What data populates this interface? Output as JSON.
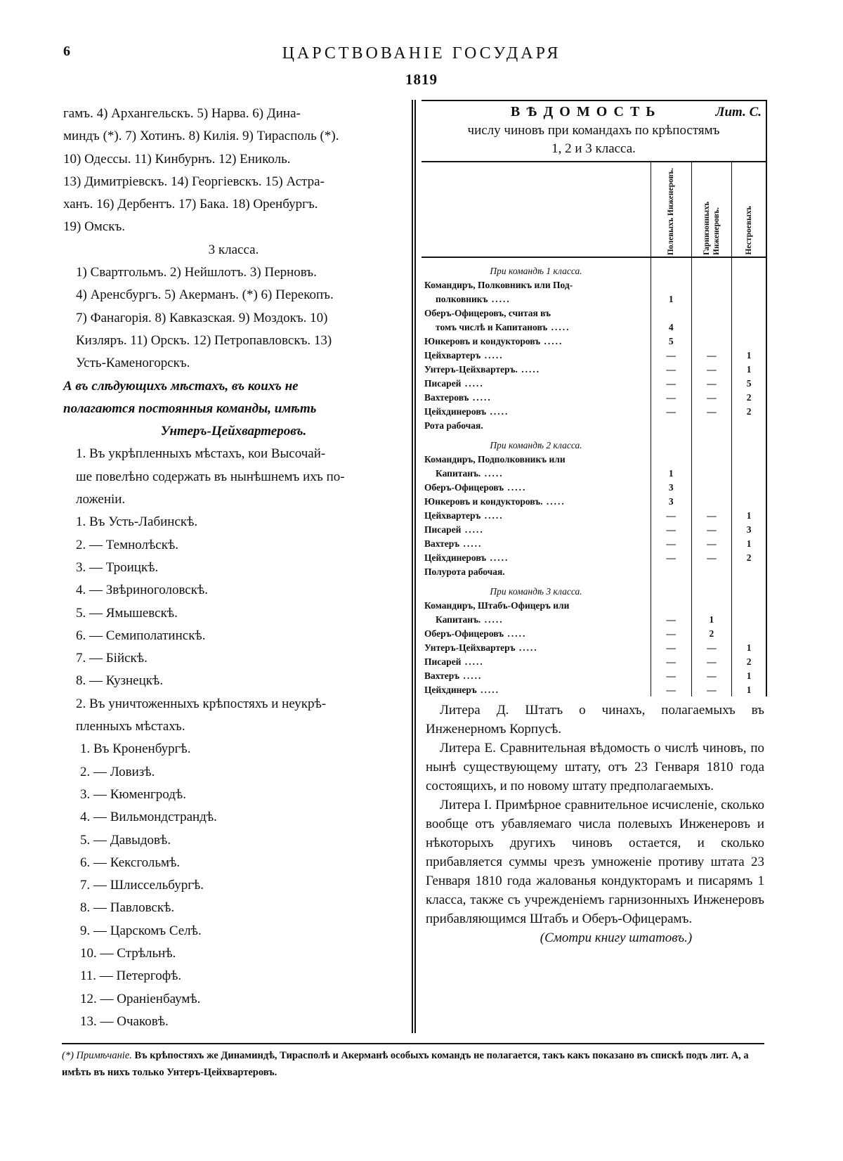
{
  "header": {
    "page_number": "6",
    "title": "ЦАРСТВОВАНІЕ ГОСУДАРЯ",
    "year": "1819"
  },
  "left": {
    "intro_lines": [
      "гамъ. 4) Архангельскъ. 5) Нарва. 6) Дина-",
      "миндъ (*). 7) Хотинъ. 8) Килія. 9) Тирасполь (*).",
      "10) Одессы. 11) Кинбурнъ. 12) Ениколь.",
      "13) Димитріевскъ. 14) Георгіевскъ. 15) Астра-",
      "ханъ. 16) Дербентъ. 17) Бака. 18) Оренбургъ.",
      "19) Омскъ."
    ],
    "class3_heading": "3 класса.",
    "class3_lines": [
      "1) Свартгольмъ. 2) Нейшлотъ. 3) Перновъ.",
      "4) Аренсбургъ. 5) Акерманъ. (*) 6) Перекопъ.",
      "7) Фанагорія. 8) Кавказская. 9) Моздокъ. 10)",
      "Кизляръ. 11) Орскъ. 12) Петропавловскъ. 13)",
      "Усть-Каменогорскъ."
    ],
    "italic_lines": [
      "А въ слѣдующихъ мѣстахъ, въ коихъ не",
      "полагаются постоянныя команды, имѣть",
      "Унтеръ-Цейхвартеровъ."
    ],
    "section1_lines": [
      "1. Въ укрѣпленныхъ мѣстахъ, кои Высочай-",
      "ше повелѣно содержать въ нынѣшнемъ ихъ по-",
      "ложеніи."
    ],
    "section1_items": [
      "1. Въ Усть-Лабинскѣ.",
      "2. — Темнолѣскѣ.",
      "3. — Троицкѣ.",
      "4. — Звѣриноголовскѣ.",
      "5. — Ямышевскѣ.",
      "6. — Семиполатинскѣ.",
      "7. — Бійскѣ.",
      "8. — Кузнецкѣ."
    ],
    "section2_lines": [
      "2. Въ уничтоженныхъ крѣпостяхъ и неукрѣ-",
      "пленныхъ мѣстахъ."
    ],
    "section2_items": [
      "1. Въ Кроненбургѣ.",
      "2. — Ловизѣ.",
      "3. — Кюменгродѣ.",
      "4. — Вильмондстрандѣ.",
      "5. — Давыдовѣ.",
      "6. — Кексгольмѣ.",
      "7. — Шлиссельбургѣ.",
      "8. — Павловскѣ.",
      "9. — Царскомъ Селѣ.",
      "10. — Стрѣльнѣ.",
      "11. — Петергофѣ.",
      "12. — Ораніенбаумѣ.",
      "13. — Очаковѣ."
    ]
  },
  "table": {
    "title": "ВѢДОМОСТЬ",
    "litera": "Лит. С.",
    "subtitle1": "числу чиновъ при командахъ по крѣпостямъ",
    "subtitle2": "1, 2 и 3 класса.",
    "columns": [
      "Полевыхъ Инженеровъ.",
      "Гарнизонныхъ Инженеровъ.",
      "Нестроевыхъ"
    ],
    "sections": [
      {
        "heading": "При командѣ 1 класса.",
        "rows": [
          {
            "label": [
              "Командиръ, Полковникъ или Под-",
              "полковникъ"
            ],
            "values": [
              "1",
              "",
              ""
            ]
          },
          {
            "label": [
              "Оберъ-Офицеровъ, считая въ",
              "томъ числѣ и Капитановъ"
            ],
            "values": [
              "4",
              "",
              ""
            ]
          },
          {
            "label": [
              "Юнкеровъ и кондукторовъ"
            ],
            "values": [
              "5",
              "",
              ""
            ]
          },
          {
            "label": [
              "Цейхвартеръ"
            ],
            "values": [
              "—",
              "—",
              "1"
            ]
          },
          {
            "label": [
              "Унтеръ-Цейхвартеръ."
            ],
            "values": [
              "—",
              "—",
              "1"
            ]
          },
          {
            "label": [
              "Писарей"
            ],
            "values": [
              "—",
              "—",
              "5"
            ]
          },
          {
            "label": [
              "Вахтеровъ"
            ],
            "values": [
              "—",
              "—",
              "2"
            ]
          },
          {
            "label": [
              "Цейхдинеровъ"
            ],
            "values": [
              "—",
              "—",
              "2"
            ]
          },
          {
            "label": [
              "Рота рабочая."
            ],
            "values": [
              "",
              "",
              ""
            ]
          }
        ]
      },
      {
        "heading": "При командѣ 2 класса.",
        "rows": [
          {
            "label": [
              "Командиръ, Подполковникъ или",
              "Капитанъ."
            ],
            "values": [
              "1",
              "",
              ""
            ]
          },
          {
            "label": [
              "Оберъ-Офицеровъ"
            ],
            "values": [
              "3",
              "",
              ""
            ]
          },
          {
            "label": [
              "Юнкеровъ и кондукторовъ."
            ],
            "values": [
              "3",
              "",
              ""
            ]
          },
          {
            "label": [
              "Цейхвартеръ"
            ],
            "values": [
              "—",
              "—",
              "1"
            ]
          },
          {
            "label": [
              "Писарей"
            ],
            "values": [
              "—",
              "—",
              "3"
            ]
          },
          {
            "label": [
              "Вахтеръ"
            ],
            "values": [
              "—",
              "—",
              "1"
            ]
          },
          {
            "label": [
              "Цейхдинеровъ"
            ],
            "values": [
              "—",
              "—",
              "2"
            ]
          },
          {
            "label": [
              "Полурота рабочая."
            ],
            "values": [
              "",
              "",
              ""
            ]
          }
        ]
      },
      {
        "heading": "При командѣ 3 класса.",
        "rows": [
          {
            "label": [
              "Командиръ, Штабъ-Офицеръ или",
              "Капитанъ."
            ],
            "values": [
              "—",
              "1",
              ""
            ]
          },
          {
            "label": [
              "Оберъ-Офицеровъ"
            ],
            "values": [
              "—",
              "2",
              ""
            ]
          },
          {
            "label": [
              "Унтеръ-Цейхвартеръ"
            ],
            "values": [
              "—",
              "—",
              "1"
            ]
          },
          {
            "label": [
              "Писарей"
            ],
            "values": [
              "—",
              "—",
              "2"
            ]
          },
          {
            "label": [
              "Вахтеръ"
            ],
            "values": [
              "—",
              "—",
              "1"
            ]
          },
          {
            "label": [
              "Цейхдинеръ"
            ],
            "values": [
              "—",
              "—",
              "1"
            ]
          }
        ]
      }
    ]
  },
  "paragraphs": [
    "Литера Д. Штатъ о чинахъ, полагаемыхъ въ Инженерномъ Корпусѣ.",
    "Литера Е. Сравнительная вѣдомость о числѣ чиновъ, по нынѣ существующему штату, отъ 23 Генваря 1810 года состоящихъ, и по новому штату предполагаемыхъ.",
    "Литера І. Примѣрное сравнительное исчисленіе, сколько вообще отъ убавляемаго числа полевыхъ Инженеровъ и нѣкоторыхъ другихъ чиновъ остается, и сколько прибавляется суммы чрезъ умноженіе противу штата 23 Генваря 1810 года жалованья кондукторамъ и писарямъ 1 класса, также съ учрежденіемъ гарнизонныхъ Инженеровъ прибавляющимся Штабъ и Оберъ-Офицерамъ."
  ],
  "reference": "(Смотри книгу штатовъ.)",
  "footnote": {
    "mark": "(*) Примѣчаніе.",
    "text": "Въ крѣпостяхъ же Динаминдѣ, Тирасполѣ и Акерманѣ особыхъ командъ не полагается, такъ какъ показано въ спискѣ подъ лит. А, а имѣть въ нихъ только Унтеръ-Цейхвартеровъ."
  }
}
